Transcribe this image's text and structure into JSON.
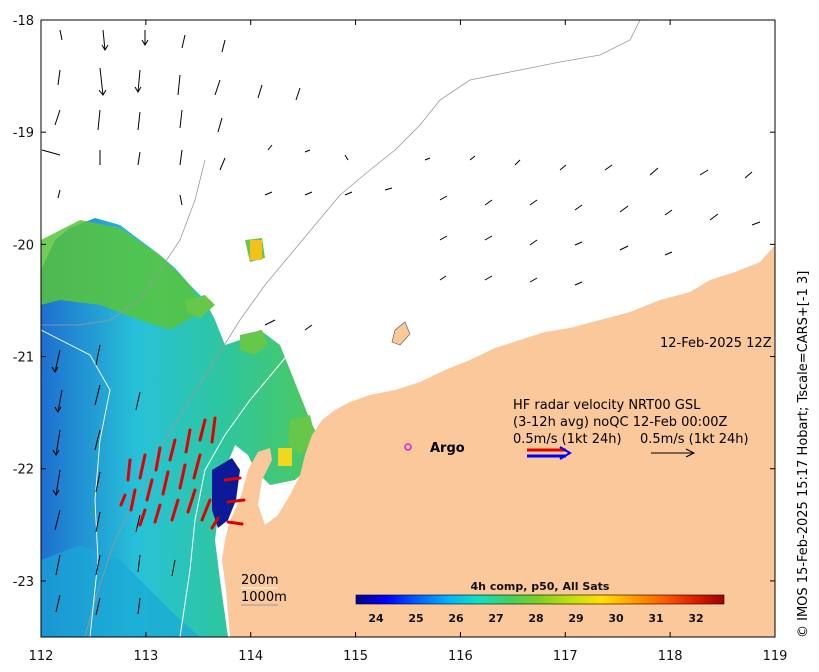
{
  "map": {
    "lon_ticks": [
      "112",
      "113",
      "114",
      "115",
      "116",
      "117",
      "118",
      "119"
    ],
    "lat_ticks": [
      "-18",
      "-19",
      "-20",
      "-21",
      "-22",
      "-23"
    ],
    "lon_range": [
      112,
      119
    ],
    "lat_range": [
      -23.5,
      -18
    ],
    "land_color": "#fac89b",
    "date_label": "12-Feb-2025 12Z",
    "legend": {
      "line1": "HF radar velocity  NRT00 GSL",
      "line2": "(3-12h avg) noQC 12-Feb 00:00Z",
      "line3_left": "0.5m/s (1kt 24h)",
      "line3_right": "0.5m/s (1kt 24h)"
    },
    "argo_label": "Argo",
    "argo_position": {
      "lon": 115.48,
      "lat": -21.88
    },
    "depth_labels": [
      "200m",
      "1000m"
    ],
    "copyright": "© IMOS 15-Feb-2025 15:17 Hobart; Tscale=CARS+[-1 3]"
  },
  "colorbar": {
    "title": "4h comp, p50, All Sats",
    "ticks": [
      "24",
      "25",
      "26",
      "27",
      "28",
      "29",
      "30",
      "31",
      "32"
    ],
    "range": [
      23.5,
      32.7
    ],
    "colors": [
      "#00008f",
      "#0000ff",
      "#0060ff",
      "#00b4ff",
      "#10e0c0",
      "#40d060",
      "#80d020",
      "#c0e010",
      "#ffe000",
      "#ffa000",
      "#ff6000",
      "#e02000",
      "#a00000"
    ]
  }
}
